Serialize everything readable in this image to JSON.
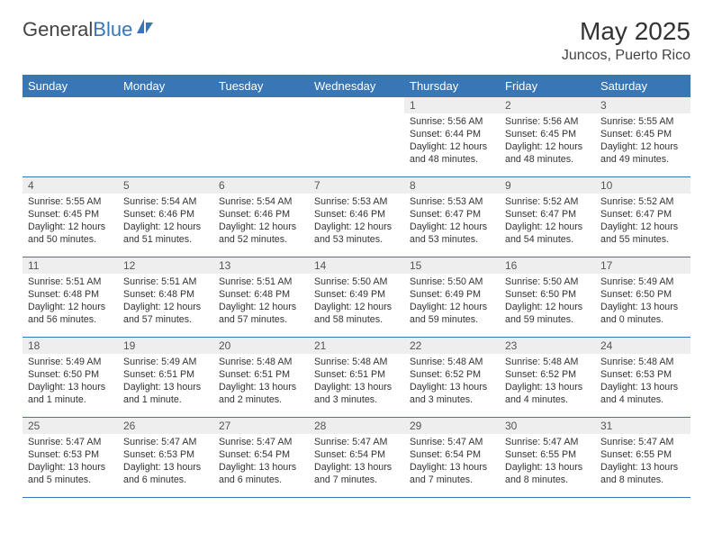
{
  "brand": {
    "part1": "General",
    "part2": "Blue"
  },
  "title": "May 2025",
  "location": "Juncos, Puerto Rico",
  "colors": {
    "brand_blue": "#3976b6",
    "header_text_gray": "#444444",
    "daynum_bg": "#eeeeee",
    "rule_color": "#3976b6"
  },
  "fonts": {
    "base_family": "Arial",
    "title_size_pt": 28,
    "header_size_pt": 13,
    "body_size_pt": 10.7
  },
  "days_of_week": [
    "Sunday",
    "Monday",
    "Tuesday",
    "Wednesday",
    "Thursday",
    "Friday",
    "Saturday"
  ],
  "start_day_index": 4,
  "days": [
    {
      "n": 1,
      "sunrise": "5:56 AM",
      "sunset": "6:44 PM",
      "daylight": "12 hours and 48 minutes."
    },
    {
      "n": 2,
      "sunrise": "5:56 AM",
      "sunset": "6:45 PM",
      "daylight": "12 hours and 48 minutes."
    },
    {
      "n": 3,
      "sunrise": "5:55 AM",
      "sunset": "6:45 PM",
      "daylight": "12 hours and 49 minutes."
    },
    {
      "n": 4,
      "sunrise": "5:55 AM",
      "sunset": "6:45 PM",
      "daylight": "12 hours and 50 minutes."
    },
    {
      "n": 5,
      "sunrise": "5:54 AM",
      "sunset": "6:46 PM",
      "daylight": "12 hours and 51 minutes."
    },
    {
      "n": 6,
      "sunrise": "5:54 AM",
      "sunset": "6:46 PM",
      "daylight": "12 hours and 52 minutes."
    },
    {
      "n": 7,
      "sunrise": "5:53 AM",
      "sunset": "6:46 PM",
      "daylight": "12 hours and 53 minutes."
    },
    {
      "n": 8,
      "sunrise": "5:53 AM",
      "sunset": "6:47 PM",
      "daylight": "12 hours and 53 minutes."
    },
    {
      "n": 9,
      "sunrise": "5:52 AM",
      "sunset": "6:47 PM",
      "daylight": "12 hours and 54 minutes."
    },
    {
      "n": 10,
      "sunrise": "5:52 AM",
      "sunset": "6:47 PM",
      "daylight": "12 hours and 55 minutes."
    },
    {
      "n": 11,
      "sunrise": "5:51 AM",
      "sunset": "6:48 PM",
      "daylight": "12 hours and 56 minutes."
    },
    {
      "n": 12,
      "sunrise": "5:51 AM",
      "sunset": "6:48 PM",
      "daylight": "12 hours and 57 minutes."
    },
    {
      "n": 13,
      "sunrise": "5:51 AM",
      "sunset": "6:48 PM",
      "daylight": "12 hours and 57 minutes."
    },
    {
      "n": 14,
      "sunrise": "5:50 AM",
      "sunset": "6:49 PM",
      "daylight": "12 hours and 58 minutes."
    },
    {
      "n": 15,
      "sunrise": "5:50 AM",
      "sunset": "6:49 PM",
      "daylight": "12 hours and 59 minutes."
    },
    {
      "n": 16,
      "sunrise": "5:50 AM",
      "sunset": "6:50 PM",
      "daylight": "12 hours and 59 minutes."
    },
    {
      "n": 17,
      "sunrise": "5:49 AM",
      "sunset": "6:50 PM",
      "daylight": "13 hours and 0 minutes."
    },
    {
      "n": 18,
      "sunrise": "5:49 AM",
      "sunset": "6:50 PM",
      "daylight": "13 hours and 1 minute."
    },
    {
      "n": 19,
      "sunrise": "5:49 AM",
      "sunset": "6:51 PM",
      "daylight": "13 hours and 1 minute."
    },
    {
      "n": 20,
      "sunrise": "5:48 AM",
      "sunset": "6:51 PM",
      "daylight": "13 hours and 2 minutes."
    },
    {
      "n": 21,
      "sunrise": "5:48 AM",
      "sunset": "6:51 PM",
      "daylight": "13 hours and 3 minutes."
    },
    {
      "n": 22,
      "sunrise": "5:48 AM",
      "sunset": "6:52 PM",
      "daylight": "13 hours and 3 minutes."
    },
    {
      "n": 23,
      "sunrise": "5:48 AM",
      "sunset": "6:52 PM",
      "daylight": "13 hours and 4 minutes."
    },
    {
      "n": 24,
      "sunrise": "5:48 AM",
      "sunset": "6:53 PM",
      "daylight": "13 hours and 4 minutes."
    },
    {
      "n": 25,
      "sunrise": "5:47 AM",
      "sunset": "6:53 PM",
      "daylight": "13 hours and 5 minutes."
    },
    {
      "n": 26,
      "sunrise": "5:47 AM",
      "sunset": "6:53 PM",
      "daylight": "13 hours and 6 minutes."
    },
    {
      "n": 27,
      "sunrise": "5:47 AM",
      "sunset": "6:54 PM",
      "daylight": "13 hours and 6 minutes."
    },
    {
      "n": 28,
      "sunrise": "5:47 AM",
      "sunset": "6:54 PM",
      "daylight": "13 hours and 7 minutes."
    },
    {
      "n": 29,
      "sunrise": "5:47 AM",
      "sunset": "6:54 PM",
      "daylight": "13 hours and 7 minutes."
    },
    {
      "n": 30,
      "sunrise": "5:47 AM",
      "sunset": "6:55 PM",
      "daylight": "13 hours and 8 minutes."
    },
    {
      "n": 31,
      "sunrise": "5:47 AM",
      "sunset": "6:55 PM",
      "daylight": "13 hours and 8 minutes."
    }
  ],
  "labels": {
    "sunrise_prefix": "Sunrise: ",
    "sunset_prefix": "Sunset: ",
    "daylight_prefix": "Daylight: "
  }
}
